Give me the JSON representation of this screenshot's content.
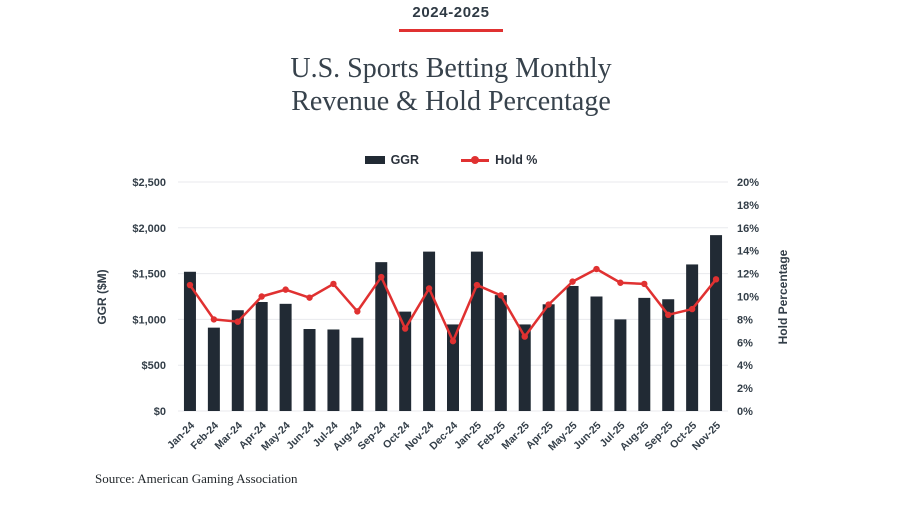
{
  "page": {
    "kicker": "2024-2025",
    "title_line1": "U.S. Sports Betting Monthly",
    "title_line2": "Revenue & Hold Percentage",
    "source": "Source: American Gaming Association"
  },
  "legend": [
    {
      "label": "GGR",
      "marker": "bar-swatch",
      "color": "#212a34"
    },
    {
      "label": "Hold %",
      "marker": "line-dot-swatch",
      "color": "#e03131"
    }
  ],
  "colors": {
    "accent_red": "#e03131",
    "bar_dark": "#212a34",
    "text_dark": "#333e48",
    "title_dark": "#37424c",
    "gridline": "#e8eaed"
  },
  "chart_data": {
    "type": "bar",
    "subtype": "bar+line dual-axis",
    "title": "U.S. Sports Betting Monthly Revenue & Hold Percentage",
    "subtitle": "2024-2025",
    "grid": "horizontal",
    "legend_position": "top-center",
    "categories": [
      "Jan-24",
      "Feb-24",
      "Mar-24",
      "Apr-24",
      "May-24",
      "Jun-24",
      "Jul-24",
      "Aug-24",
      "Sep-24",
      "Oct-24",
      "Nov-24",
      "Dec-24",
      "Jan-25",
      "Feb-25",
      "Mar-25",
      "Apr-25",
      "May-25",
      "Jun-25",
      "Jul-25",
      "Aug-25",
      "Sep-25",
      "Oct-25",
      "Nov-25"
    ],
    "series": [
      {
        "name": "GGR",
        "type": "bar",
        "axis": "left",
        "unit": "$M",
        "color": "#212a34",
        "values": [
          1520,
          910,
          1100,
          1190,
          1170,
          895,
          890,
          800,
          1625,
          1085,
          1740,
          945,
          1740,
          1265,
          945,
          1165,
          1365,
          1250,
          1000,
          1235,
          1220,
          1600,
          1920
        ]
      },
      {
        "name": "Hold %",
        "type": "line",
        "axis": "right",
        "unit": "%",
        "color": "#e03131",
        "values": [
          11.0,
          8.0,
          7.8,
          10.0,
          10.6,
          9.9,
          11.1,
          8.7,
          11.7,
          7.2,
          10.7,
          6.1,
          11.0,
          10.1,
          6.5,
          9.3,
          11.3,
          12.4,
          11.2,
          11.1,
          8.4,
          8.9,
          11.5
        ]
      }
    ],
    "left_axis": {
      "label": "GGR ($M)",
      "min": 0,
      "max": 2500,
      "ticks": [
        {
          "label": "$0",
          "value": 0
        },
        {
          "label": "$500",
          "value": 500
        },
        {
          "label": "$1,000",
          "value": 1000
        },
        {
          "label": "$1,500",
          "value": 1500
        },
        {
          "label": "$2,000",
          "value": 2000
        },
        {
          "label": "$2,500",
          "value": 2500
        }
      ]
    },
    "right_axis": {
      "label": "Hold Percentage",
      "min": 0,
      "max": 20,
      "ticks": [
        {
          "label": "0%",
          "value": 0
        },
        {
          "label": "2%",
          "value": 2
        },
        {
          "label": "4%",
          "value": 4
        },
        {
          "label": "6%",
          "value": 6
        },
        {
          "label": "8%",
          "value": 8
        },
        {
          "label": "10%",
          "value": 10
        },
        {
          "label": "12%",
          "value": 12
        },
        {
          "label": "14%",
          "value": 14
        },
        {
          "label": "16%",
          "value": 16
        },
        {
          "label": "18%",
          "value": 18
        },
        {
          "label": "20%",
          "value": 20
        }
      ]
    }
  }
}
